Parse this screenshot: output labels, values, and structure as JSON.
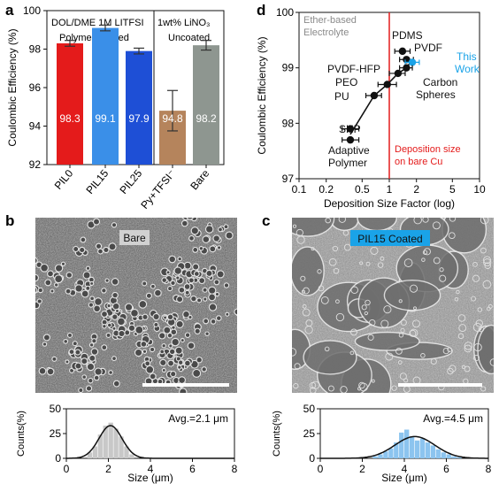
{
  "panels": {
    "a": {
      "letter": "a"
    },
    "b": {
      "letter": "b"
    },
    "c": {
      "letter": "c"
    },
    "d": {
      "letter": "d"
    }
  },
  "colors": {
    "red": "#e41b1b",
    "blue_light": "#3a8fe8",
    "blue_dark": "#1e4fd6",
    "brown": "#b5845c",
    "gray": "#8e9690",
    "this_work": "#1aa3e8",
    "deposition_line": "#e41b1b",
    "hist_b": "#c8c8c8",
    "hist_c": "#8cc4ef"
  },
  "sem": {
    "b_label": "Bare",
    "c_label": "PIL15 Coated"
  },
  "chart_data": [
    {
      "id": "a",
      "type": "bar",
      "ylabel": "Coulombic Efficiency (%)",
      "ylim": [
        92,
        100
      ],
      "yticks": [
        92,
        94,
        96,
        98,
        100
      ],
      "header_left_line1": "DOL/DME 1M LITFSI",
      "header_right_line1": "1wt% LiNO₃",
      "header_left_line2": "Polymer Coated",
      "header_right_line2": "Uncoated",
      "categories": [
        "PIL0",
        "PIL15",
        "PIL25",
        "Py+TFSI⁻",
        "Bare"
      ],
      "values": [
        98.3,
        99.1,
        97.9,
        94.8,
        98.2
      ],
      "errors": [
        0.15,
        0.15,
        0.15,
        1.05,
        0.25
      ],
      "value_labels": [
        "98.3",
        "99.1",
        "97.9",
        "94.8",
        "98.2"
      ],
      "bar_colors": [
        "#e41b1b",
        "#3a8fe8",
        "#1e4fd6",
        "#b5845c",
        "#8e9690"
      ]
    },
    {
      "id": "d",
      "type": "scatter",
      "xlabel": "Deposition Size Factor (log)",
      "ylabel": "Coulombic Efficiency (%)",
      "xscale": "log",
      "xlim": [
        0.1,
        10
      ],
      "ylim": [
        97,
        100
      ],
      "xticks": [
        0.1,
        0.2,
        0.5,
        1,
        2,
        5,
        10
      ],
      "xtick_labels": [
        "0.1",
        "0.2",
        "0.5",
        "1",
        "2",
        "5",
        "10"
      ],
      "yticks": [
        97,
        98,
        99,
        100
      ],
      "annotation_electrolyte_line1": "Ether-based",
      "annotation_electrolyte_line2": "Electrolyte",
      "annotation_deposition_line1": "Deposition size",
      "annotation_deposition_line2": "on bare Cu",
      "points": [
        {
          "label": "PDMS",
          "x": 1.4,
          "y": 99.3,
          "xerr_lo": 1.15,
          "xerr_hi": 1.7,
          "color": "#111111"
        },
        {
          "label": "PVDF",
          "x": 1.55,
          "y": 99.15,
          "xerr_lo": 1.3,
          "xerr_hi": 1.85,
          "color": "#111111"
        },
        {
          "label": "This Work",
          "x": 1.8,
          "y": 99.1,
          "xerr_lo": 1.5,
          "xerr_hi": 2.15,
          "color": "#1aa3e8"
        },
        {
          "label": "Carbon Spheres",
          "x": 1.55,
          "y": 99.0,
          "xerr_lo": 1.3,
          "xerr_hi": 1.8,
          "color": "#111111"
        },
        {
          "label": "PVDF-HFP",
          "x": 1.25,
          "y": 98.9,
          "xerr_lo": 1.0,
          "xerr_hi": 1.5,
          "color": "#111111"
        },
        {
          "label": "PEO",
          "x": 0.95,
          "y": 98.7,
          "xerr_lo": 0.75,
          "xerr_hi": 1.2,
          "color": "#111111"
        },
        {
          "label": "PU",
          "x": 0.68,
          "y": 98.5,
          "xerr_lo": 0.55,
          "xerr_hi": 0.82,
          "color": "#111111"
        },
        {
          "label": "SHP",
          "x": 0.37,
          "y": 97.9,
          "xerr_lo": 0.3,
          "xerr_hi": 0.46,
          "color": "#111111"
        },
        {
          "label": "Adaptive Polymer",
          "x": 0.37,
          "y": 97.7,
          "xerr_lo": 0.3,
          "xerr_hi": 0.46,
          "color": "#111111"
        }
      ],
      "fit_line": {
        "x": [
          0.37,
          0.68,
          0.95,
          1.25,
          1.55,
          1.8
        ],
        "y": [
          97.8,
          98.5,
          98.7,
          98.9,
          99.0,
          99.15
        ]
      },
      "vertical_line_x": 1
    },
    {
      "id": "b_hist",
      "type": "bar",
      "xlabel": "Size (μm)",
      "ylabel": "Counts(%)",
      "xlim": [
        0,
        8
      ],
      "ylim": [
        0,
        50
      ],
      "xticks": [
        0,
        2,
        4,
        6,
        8
      ],
      "yticks": [
        0,
        25,
        50
      ],
      "annotation": "Avg.=2.1 μm",
      "bin_width": 0.25,
      "bin_starts": [
        1.0,
        1.25,
        1.5,
        1.75,
        2.0,
        2.25,
        2.5,
        2.75,
        3.0
      ],
      "values": [
        6,
        12,
        24,
        33,
        36,
        30,
        22,
        12,
        4
      ],
      "fit_mean": 2.1,
      "fit_sigma": 0.55,
      "fit_peak": 33
    },
    {
      "id": "c_hist",
      "type": "bar",
      "xlabel": "Size (μm)",
      "ylabel": "Counts(%)",
      "xlim": [
        0,
        8
      ],
      "ylim": [
        0,
        50
      ],
      "xticks": [
        0,
        2,
        4,
        6,
        8
      ],
      "yticks": [
        0,
        25,
        50
      ],
      "annotation": "Avg.=4.5 μm",
      "bin_width": 0.25,
      "bin_starts": [
        2.5,
        2.75,
        3.0,
        3.25,
        3.5,
        3.75,
        4.0,
        4.25,
        4.5,
        4.75,
        5.0,
        5.25,
        5.5,
        5.75,
        6.0,
        6.25,
        6.5
      ],
      "values": [
        2,
        4,
        7,
        10,
        16,
        26,
        29,
        22,
        18,
        20,
        16,
        13,
        9,
        6,
        4,
        2,
        1
      ],
      "fit_mean": 4.5,
      "fit_sigma": 0.95,
      "fit_peak": 22
    }
  ]
}
